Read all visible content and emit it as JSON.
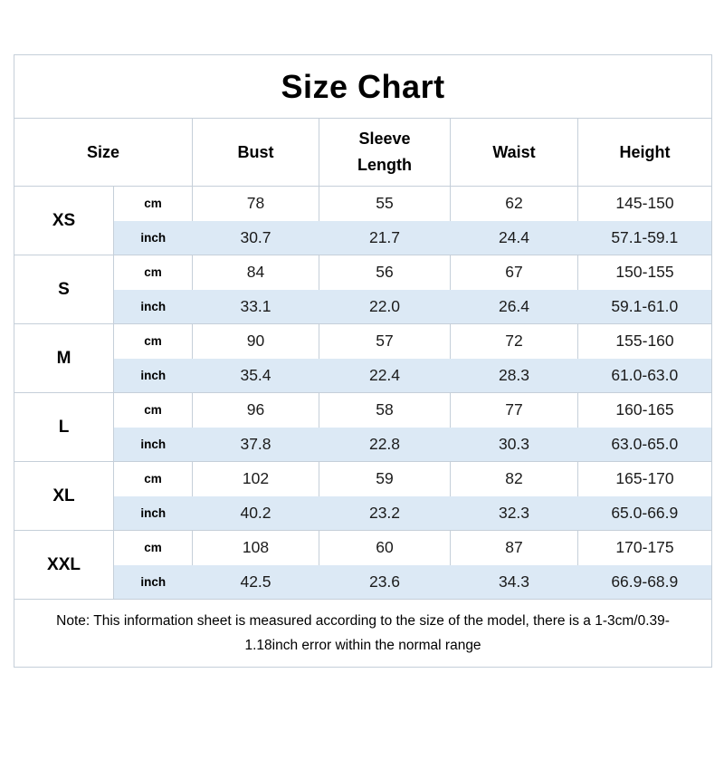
{
  "title": "Size Chart",
  "table": {
    "headers": [
      "Size",
      "Bust",
      "Sleeve Length",
      "Waist",
      "Height"
    ],
    "unit_labels": [
      "cm",
      "inch"
    ],
    "rows": [
      {
        "size": "XS",
        "cm": [
          "78",
          "55",
          "62",
          "145-150"
        ],
        "inch": [
          "30.7",
          "21.7",
          "24.4",
          "57.1-59.1"
        ]
      },
      {
        "size": "S",
        "cm": [
          "84",
          "56",
          "67",
          "150-155"
        ],
        "inch": [
          "33.1",
          "22.0",
          "26.4",
          "59.1-61.0"
        ]
      },
      {
        "size": "M",
        "cm": [
          "90",
          "57",
          "72",
          "155-160"
        ],
        "inch": [
          "35.4",
          "22.4",
          "28.3",
          "61.0-63.0"
        ]
      },
      {
        "size": "L",
        "cm": [
          "96",
          "58",
          "77",
          "160-165"
        ],
        "inch": [
          "37.8",
          "22.8",
          "30.3",
          "63.0-65.0"
        ]
      },
      {
        "size": "XL",
        "cm": [
          "102",
          "59",
          "82",
          "165-170"
        ],
        "inch": [
          "40.2",
          "23.2",
          "32.3",
          "65.0-66.9"
        ]
      },
      {
        "size": "XXL",
        "cm": [
          "108",
          "60",
          "87",
          "170-175"
        ],
        "inch": [
          "42.5",
          "23.6",
          "34.3",
          "66.9-68.9"
        ]
      }
    ]
  },
  "note": "Note: This information sheet is measured according to the size of the model, there is a 1-3cm/0.39-1.18inch error within the normal range",
  "colors": {
    "row_highlight": "#dce9f5",
    "border": "#c5cfd9",
    "text": "#000000",
    "value_text": "#1b1b1b"
  }
}
